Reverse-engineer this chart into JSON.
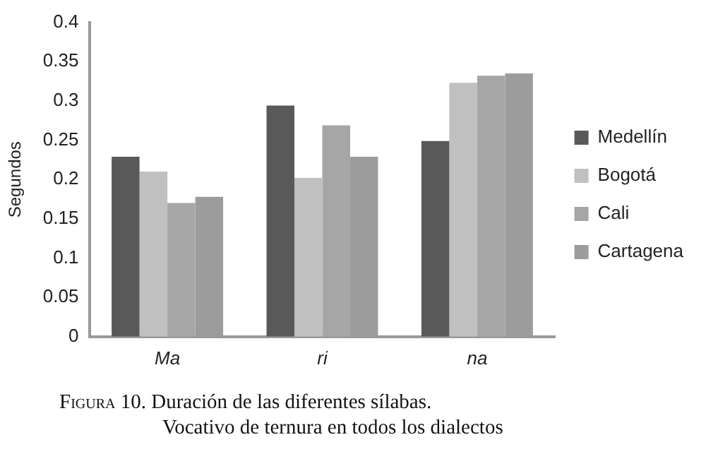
{
  "chart_data": {
    "type": "bar",
    "title": "Figura 10. Duración de las diferentes sílabas. Vocativo de ternura en todos los dialectos",
    "ylabel": "Segundos",
    "categories": [
      "Ma",
      "ri",
      "na"
    ],
    "series": [
      {
        "name": "Medellín",
        "color": "#595959",
        "values": [
          0.229,
          0.294,
          0.249
        ]
      },
      {
        "name": "Bogotá",
        "color": "#c0c0c0",
        "values": [
          0.21,
          0.202,
          0.323
        ]
      },
      {
        "name": "Cali",
        "color": "#a6a6a6",
        "values": [
          0.17,
          0.269,
          0.332
        ]
      },
      {
        "name": "Cartagena",
        "color": "#9c9c9c",
        "values": [
          0.178,
          0.229,
          0.335
        ]
      }
    ],
    "ylim": [
      0,
      0.4
    ],
    "yticks": [
      0,
      0.05,
      0.1,
      0.15,
      0.2,
      0.25,
      0.3,
      0.35,
      0.4
    ],
    "grid": false,
    "legend": "right"
  }
}
